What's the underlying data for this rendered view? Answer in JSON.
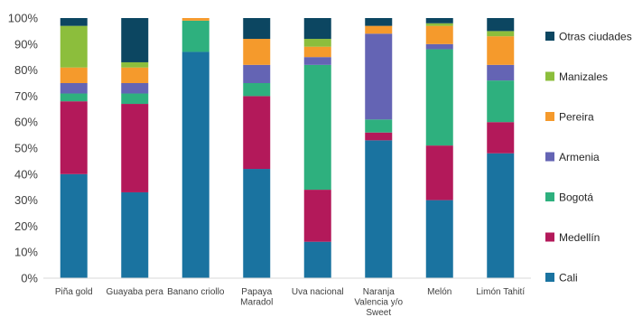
{
  "chart_data": {
    "type": "bar",
    "stacked": true,
    "ylim": [
      0,
      100
    ],
    "yticks": [
      "0%",
      "10%",
      "20%",
      "30%",
      "40%",
      "50%",
      "60%",
      "70%",
      "80%",
      "90%",
      "100%"
    ],
    "categories": [
      [
        "Piña gold"
      ],
      [
        "Guayaba pera"
      ],
      [
        "Banano criollo"
      ],
      [
        "Papaya",
        "Maradol"
      ],
      [
        "Uva nacional"
      ],
      [
        "Naranja",
        "Valencia y/o",
        "Sweet"
      ],
      [
        "Melón"
      ],
      [
        "Limón Tahití"
      ]
    ],
    "series": [
      {
        "name": "Cali",
        "color": "#1a73a0",
        "values": [
          40,
          33,
          87,
          42,
          14,
          53,
          30,
          48
        ]
      },
      {
        "name": "Medellín",
        "color": "#b3195a",
        "values": [
          28,
          34,
          0,
          28,
          20,
          3,
          21,
          12
        ]
      },
      {
        "name": "Bogotá",
        "color": "#2eb07e",
        "values": [
          3,
          4,
          12,
          5,
          48,
          5,
          37,
          16
        ]
      },
      {
        "name": "Armenia",
        "color": "#6464b4",
        "values": [
          4,
          4,
          0,
          7,
          3,
          33,
          2,
          6
        ]
      },
      {
        "name": "Pereira",
        "color": "#f59a2c",
        "values": [
          6,
          6,
          1,
          10,
          4,
          3,
          7,
          11
        ]
      },
      {
        "name": "Manizales",
        "color": "#8cbe3c",
        "values": [
          16,
          2,
          0,
          0,
          3,
          0,
          1,
          2
        ]
      },
      {
        "name": "Otras ciudades",
        "color": "#0c4661",
        "values": [
          3,
          17,
          0,
          8,
          8,
          3,
          2,
          5
        ]
      }
    ],
    "legend_position": "right",
    "grid": false
  }
}
